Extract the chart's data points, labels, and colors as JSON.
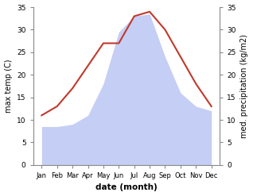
{
  "months": [
    "Jan",
    "Feb",
    "Mar",
    "Apr",
    "May",
    "Jun",
    "Jul",
    "Aug",
    "Sep",
    "Oct",
    "Nov",
    "Dec"
  ],
  "temp": [
    11,
    13,
    17,
    22,
    27,
    27,
    33,
    34,
    30,
    24,
    18,
    13
  ],
  "precip": [
    8.5,
    8.5,
    9,
    11,
    18,
    29.5,
    33,
    33.5,
    24,
    16,
    13,
    12
  ],
  "temp_color": "#c0392b",
  "precip_fill_color": "#c5cef5",
  "ylim_left": [
    0,
    35
  ],
  "ylim_right": [
    0,
    35
  ],
  "yticks_left": [
    0,
    5,
    10,
    15,
    20,
    25,
    30,
    35
  ],
  "yticks_right": [
    0,
    5,
    10,
    15,
    20,
    25,
    30,
    35
  ],
  "xlabel": "date (month)",
  "ylabel_left": "max temp (C)",
  "ylabel_right": "med. precipitation (kg/m2)",
  "bg_color": "#ffffff",
  "spine_color": "#888888",
  "tick_color": "#555555",
  "label_color": "#000000"
}
